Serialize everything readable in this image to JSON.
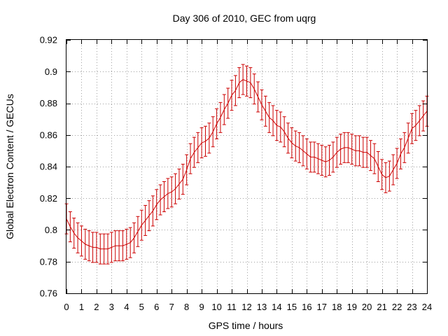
{
  "chart_data": {
    "type": "line",
    "title": "Day 306 of 2010, GEC from uqrg",
    "xlabel": "GPS time / hours",
    "ylabel": "Global Electron Content / GECUs",
    "xlim": [
      0,
      24
    ],
    "ylim": [
      0.76,
      0.92
    ],
    "xticks": [
      "0",
      "1",
      "2",
      "3",
      "4",
      "5",
      "6",
      "7",
      "8",
      "9",
      "10",
      "11",
      "12",
      "13",
      "14",
      "15",
      "16",
      "17",
      "18",
      "19",
      "20",
      "21",
      "22",
      "23",
      "24"
    ],
    "yticks": [
      "0.76",
      "0.78",
      "0.8",
      "0.82",
      "0.84",
      "0.86",
      "0.88",
      "0.9",
      "0.92"
    ],
    "grid": true,
    "error_bars": true,
    "series": [
      {
        "color": "#cc0000",
        "x": [
          0,
          0.25,
          0.5,
          0.75,
          1,
          1.25,
          1.5,
          1.75,
          2,
          2.25,
          2.5,
          2.75,
          3,
          3.25,
          3.5,
          3.75,
          4,
          4.25,
          4.5,
          4.75,
          5,
          5.25,
          5.5,
          5.75,
          6,
          6.25,
          6.5,
          6.75,
          7,
          7.25,
          7.5,
          7.75,
          8,
          8.25,
          8.5,
          8.75,
          9,
          9.25,
          9.5,
          9.75,
          10,
          10.25,
          10.5,
          10.75,
          11,
          11.25,
          11.5,
          11.75,
          12,
          12.25,
          12.5,
          12.75,
          13,
          13.25,
          13.5,
          13.75,
          14,
          14.25,
          14.5,
          14.75,
          15,
          15.25,
          15.5,
          15.75,
          16,
          16.25,
          16.5,
          16.75,
          17,
          17.25,
          17.5,
          17.75,
          18,
          18.25,
          18.5,
          18.75,
          19,
          19.25,
          19.5,
          19.75,
          20,
          20.25,
          20.5,
          20.75,
          21,
          21.25,
          21.5,
          21.75,
          22,
          22.25,
          22.5,
          22.75,
          23,
          23.25,
          23.5,
          23.75,
          24
        ],
        "values": [
          0.807,
          0.802,
          0.798,
          0.795,
          0.793,
          0.791,
          0.79,
          0.789,
          0.789,
          0.788,
          0.788,
          0.788,
          0.789,
          0.79,
          0.79,
          0.79,
          0.791,
          0.792,
          0.795,
          0.799,
          0.803,
          0.806,
          0.809,
          0.812,
          0.816,
          0.819,
          0.821,
          0.823,
          0.824,
          0.826,
          0.829,
          0.832,
          0.838,
          0.845,
          0.849,
          0.852,
          0.855,
          0.856,
          0.858,
          0.862,
          0.867,
          0.871,
          0.876,
          0.88,
          0.885,
          0.888,
          0.893,
          0.895,
          0.894,
          0.893,
          0.889,
          0.884,
          0.879,
          0.875,
          0.871,
          0.869,
          0.866,
          0.865,
          0.862,
          0.858,
          0.855,
          0.853,
          0.852,
          0.85,
          0.848,
          0.846,
          0.846,
          0.845,
          0.844,
          0.843,
          0.844,
          0.846,
          0.849,
          0.851,
          0.852,
          0.852,
          0.851,
          0.85,
          0.85,
          0.849,
          0.849,
          0.847,
          0.845,
          0.84,
          0.835,
          0.833,
          0.834,
          0.838,
          0.842,
          0.848,
          0.852,
          0.858,
          0.864,
          0.866,
          0.869,
          0.872,
          0.875
        ],
        "error": 0.0095
      }
    ]
  }
}
